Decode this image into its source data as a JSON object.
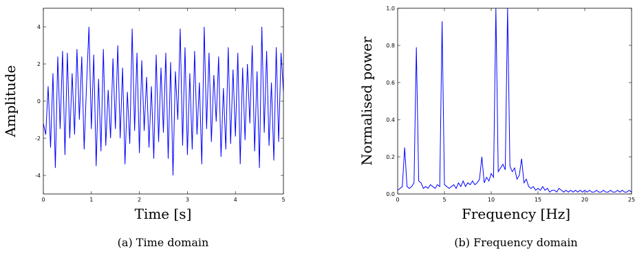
{
  "chart_data": [
    {
      "type": "line",
      "xlabel": "Time [s]",
      "ylabel": "Amplitude",
      "caption": "(a) Time domain",
      "color": "#0000ff",
      "xlim": [
        0,
        5
      ],
      "ylim": [
        -5,
        5
      ],
      "xticks": [
        0,
        1,
        2,
        3,
        4,
        5
      ],
      "yticks": [
        -4,
        -2,
        0,
        2,
        4
      ],
      "x": [
        0,
        0.05,
        0.1,
        0.15,
        0.2,
        0.25,
        0.3,
        0.35,
        0.4,
        0.45,
        0.5,
        0.55,
        0.6,
        0.65,
        0.7,
        0.75,
        0.8,
        0.85,
        0.9,
        0.95,
        1.0,
        1.05,
        1.1,
        1.15,
        1.2,
        1.25,
        1.3,
        1.35,
        1.4,
        1.45,
        1.5,
        1.55,
        1.6,
        1.65,
        1.7,
        1.75,
        1.8,
        1.85,
        1.9,
        1.95,
        2.0,
        2.05,
        2.1,
        2.15,
        2.2,
        2.25,
        2.3,
        2.35,
        2.4,
        2.45,
        2.5,
        2.55,
        2.6,
        2.65,
        2.7,
        2.75,
        2.8,
        2.85,
        2.9,
        2.95,
        3.0,
        3.05,
        3.1,
        3.15,
        3.2,
        3.25,
        3.3,
        3.35,
        3.4,
        3.45,
        3.5,
        3.55,
        3.6,
        3.65,
        3.7,
        3.75,
        3.8,
        3.85,
        3.9,
        3.95,
        4.0,
        4.05,
        4.1,
        4.15,
        4.2,
        4.25,
        4.3,
        4.35,
        4.4,
        4.45,
        4.5,
        4.55,
        4.6,
        4.65,
        4.7,
        4.75,
        4.8,
        4.85,
        4.9,
        4.95,
        5.0
      ],
      "values": [
        -1.2,
        -1.8,
        0.8,
        -2.5,
        1.5,
        -3.6,
        2.4,
        -1.5,
        2.7,
        -2.9,
        2.6,
        -2.0,
        1.5,
        -1.8,
        2.8,
        -1.0,
        2.4,
        -2.6,
        0.9,
        4.0,
        -1.5,
        2.5,
        -3.5,
        1.2,
        -2.7,
        2.8,
        -2.4,
        0.6,
        -2.0,
        2.3,
        -1.5,
        3.0,
        -2.0,
        1.8,
        -3.4,
        0.5,
        -2.3,
        3.9,
        -1.6,
        2.6,
        -2.8,
        2.2,
        -1.6,
        1.3,
        -2.5,
        0.8,
        -3.1,
        2.5,
        -2.2,
        1.8,
        -1.7,
        2.6,
        -3.1,
        2.1,
        -4.0,
        1.6,
        -1.0,
        3.9,
        -2.4,
        2.9,
        -2.9,
        1.5,
        -2.6,
        2.7,
        -1.8,
        1.0,
        -3.4,
        4.0,
        -1.5,
        2.6,
        -2.2,
        1.4,
        -1.1,
        2.4,
        -3.0,
        0.7,
        -2.6,
        2.9,
        -2.3,
        1.7,
        -1.9,
        2.6,
        -3.4,
        1.8,
        -2.1,
        2.0,
        -1.2,
        3.0,
        -2.7,
        1.6,
        -3.6,
        4.0,
        -1.7,
        2.7,
        -2.4,
        1.0,
        -3.2,
        2.9,
        -2.2,
        2.6,
        0.5
      ]
    },
    {
      "type": "line",
      "xlabel": "Frequency [Hz]",
      "ylabel": "Normalised power",
      "caption": "(b) Frequency domain",
      "color": "#0000ff",
      "xlim": [
        0,
        25
      ],
      "ylim": [
        0,
        1
      ],
      "xticks": [
        0,
        5,
        10,
        15,
        20,
        25
      ],
      "yticks": [
        {
          "value": 0,
          "label": "0.0"
        },
        0.2,
        0.4,
        0.6,
        0.8,
        {
          "value": 1,
          "label": "1.0"
        }
      ],
      "x": [
        0,
        0.25,
        0.5,
        0.75,
        1.0,
        1.25,
        1.5,
        1.75,
        2.0,
        2.25,
        2.5,
        2.75,
        3.0,
        3.25,
        3.5,
        3.75,
        4.0,
        4.25,
        4.5,
        4.75,
        5.0,
        5.25,
        5.5,
        5.75,
        6.0,
        6.25,
        6.5,
        6.75,
        7.0,
        7.25,
        7.5,
        7.75,
        8.0,
        8.25,
        8.5,
        8.75,
        9.0,
        9.25,
        9.5,
        9.75,
        10.0,
        10.25,
        10.5,
        10.75,
        11.0,
        11.25,
        11.5,
        11.75,
        12.0,
        12.25,
        12.5,
        12.75,
        13.0,
        13.25,
        13.5,
        13.75,
        14.0,
        14.25,
        14.5,
        14.75,
        15.0,
        15.25,
        15.5,
        15.75,
        16.0,
        16.25,
        16.5,
        16.75,
        17.0,
        17.25,
        17.5,
        17.75,
        18.0,
        18.25,
        18.5,
        18.75,
        19.0,
        19.25,
        19.5,
        19.75,
        20.0,
        20.25,
        20.5,
        20.75,
        21.0,
        21.25,
        21.5,
        21.75,
        22.0,
        22.25,
        22.5,
        22.75,
        23.0,
        23.25,
        23.5,
        23.75,
        24.0,
        24.25,
        24.5,
        24.75,
        25.0
      ],
      "values": [
        0.02,
        0.03,
        0.04,
        0.25,
        0.04,
        0.03,
        0.04,
        0.06,
        0.79,
        0.07,
        0.06,
        0.03,
        0.04,
        0.03,
        0.05,
        0.04,
        0.03,
        0.05,
        0.04,
        0.93,
        0.05,
        0.04,
        0.03,
        0.04,
        0.05,
        0.03,
        0.06,
        0.04,
        0.07,
        0.04,
        0.06,
        0.05,
        0.07,
        0.05,
        0.06,
        0.08,
        0.2,
        0.06,
        0.09,
        0.07,
        0.11,
        0.09,
        1.0,
        0.12,
        0.14,
        0.16,
        0.13,
        1.0,
        0.15,
        0.12,
        0.14,
        0.08,
        0.1,
        0.19,
        0.06,
        0.08,
        0.04,
        0.03,
        0.04,
        0.02,
        0.03,
        0.02,
        0.04,
        0.02,
        0.03,
        0.01,
        0.02,
        0.02,
        0.01,
        0.03,
        0.02,
        0.01,
        0.02,
        0.01,
        0.02,
        0.01,
        0.02,
        0.01,
        0.02,
        0.01,
        0.02,
        0.01,
        0.02,
        0.01,
        0.01,
        0.02,
        0.01,
        0.01,
        0.02,
        0.01,
        0.01,
        0.02,
        0.01,
        0.01,
        0.02,
        0.01,
        0.02,
        0.01,
        0.01,
        0.02,
        0.01
      ]
    }
  ]
}
